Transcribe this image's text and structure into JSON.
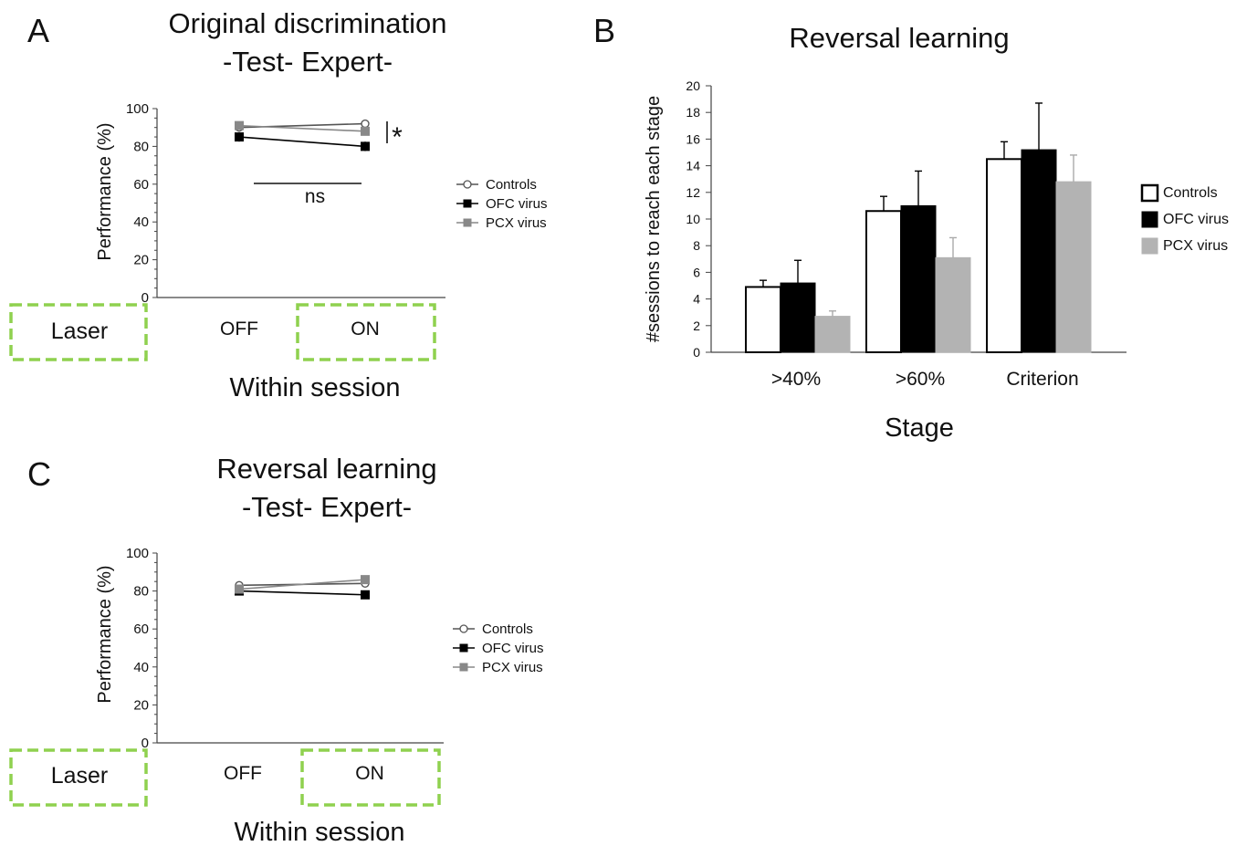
{
  "chart_data": [
    {
      "panel": "A",
      "type": "line",
      "title_lines": [
        "Original discrimination",
        "-Test- Expert-"
      ],
      "ylabel": "Performance (%)",
      "xlabel": "Within session",
      "ylim": [
        0,
        100
      ],
      "yticks": [
        "0",
        "20",
        "40",
        "60",
        "80",
        "100"
      ],
      "categories": [
        "OFF",
        "ON"
      ],
      "laser_label": "Laser",
      "series": [
        {
          "name": "Controls",
          "values": [
            90,
            92
          ],
          "err": [
            1.5,
            1.5
          ],
          "color": "#ffffff",
          "stroke": "#555555",
          "marker": "circle"
        },
        {
          "name": "OFC virus",
          "values": [
            85,
            80
          ],
          "err": [
            2.5,
            2.5
          ],
          "color": "#000000",
          "stroke": "#000000",
          "marker": "square"
        },
        {
          "name": "PCX virus",
          "values": [
            91,
            88
          ],
          "err": [
            1.5,
            1.5
          ],
          "color": "#888888",
          "stroke": "#888888",
          "marker": "square"
        }
      ],
      "annotations": {
        "ns": "ns",
        "significance": "*"
      }
    },
    {
      "panel": "B",
      "type": "bar",
      "title": "Reversal learning",
      "ylabel": "#sessions to reach each stage",
      "xlabel": "Stage",
      "ylim": [
        0,
        20
      ],
      "yticks": [
        "0",
        "2",
        "4",
        "6",
        "8",
        "10",
        "12",
        "14",
        "16",
        "18",
        "20"
      ],
      "categories": [
        ">40%",
        ">60%",
        "Criterion"
      ],
      "series": [
        {
          "name": "Controls",
          "values": [
            4.9,
            10.6,
            14.5
          ],
          "err": [
            0.5,
            1.1,
            1.3
          ],
          "color": "#ffffff"
        },
        {
          "name": "OFC virus",
          "values": [
            5.2,
            11.0,
            15.2
          ],
          "err": [
            1.7,
            2.6,
            3.5
          ],
          "color": "#000000"
        },
        {
          "name": "PCX virus",
          "values": [
            2.7,
            7.1,
            12.8
          ],
          "err": [
            0.4,
            1.5,
            2.0
          ],
          "color": "#b3b3b3"
        }
      ]
    },
    {
      "panel": "C",
      "type": "line",
      "title_lines": [
        "Reversal learning",
        "-Test- Expert-"
      ],
      "ylabel": "Performance (%)",
      "xlabel": "Within session",
      "ylim": [
        0,
        100
      ],
      "yticks": [
        "0",
        "20",
        "40",
        "60",
        "80",
        "100"
      ],
      "categories": [
        "OFF",
        "ON"
      ],
      "laser_label": "Laser",
      "series": [
        {
          "name": "Controls",
          "values": [
            83,
            84
          ],
          "err": [
            1.5,
            1.5
          ],
          "color": "#ffffff",
          "stroke": "#555555",
          "marker": "circle"
        },
        {
          "name": "OFC virus",
          "values": [
            80,
            78
          ],
          "err": [
            1.5,
            1.5
          ],
          "color": "#000000",
          "stroke": "#000000",
          "marker": "square"
        },
        {
          "name": "PCX virus",
          "values": [
            81,
            86
          ],
          "err": [
            1.5,
            2.0
          ],
          "color": "#888888",
          "stroke": "#888888",
          "marker": "square"
        }
      ]
    }
  ],
  "panel_labels": {
    "a": "A",
    "b": "B",
    "c": "C"
  },
  "laser_box_color": "#8fd14f"
}
